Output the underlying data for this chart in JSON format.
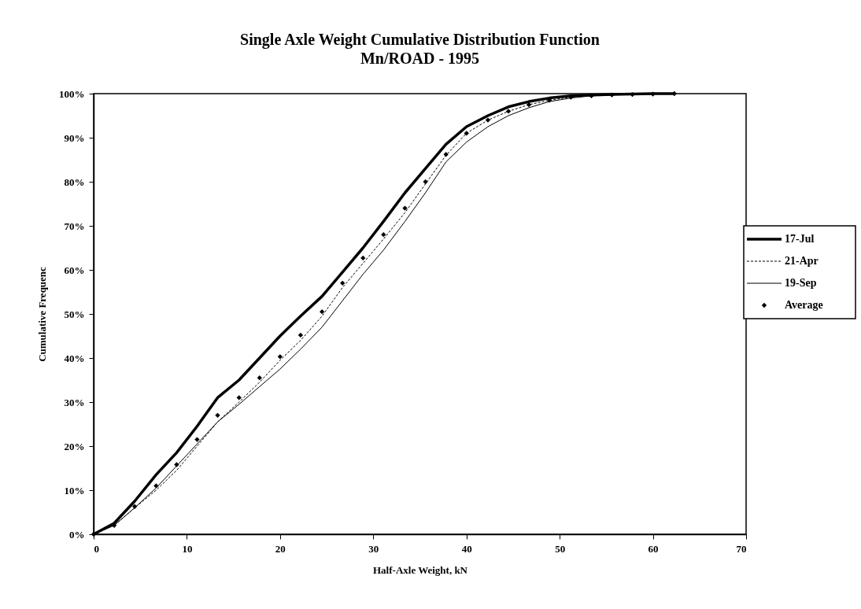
{
  "chart_data": {
    "type": "line",
    "title": "Single Axle Weight Cumulative Distribution Function",
    "subtitle": "Mn/ROAD - 1995",
    "xlabel": "Half-Axle Weight, kN",
    "ylabel": "Cumulative Frequenc",
    "x": [
      0,
      2.2,
      4.4,
      6.7,
      8.9,
      11.1,
      13.3,
      15.6,
      17.8,
      20.0,
      22.2,
      24.5,
      26.7,
      28.9,
      31.1,
      33.4,
      35.6,
      37.8,
      40.0,
      42.3,
      44.5,
      46.7,
      48.9,
      51.2,
      53.4,
      55.6,
      57.8,
      60.0,
      62.3
    ],
    "series": [
      {
        "name": "17-Jul",
        "color": "#000000",
        "line_style": "solid",
        "marker": "none",
        "values": [
          0,
          2.5,
          7.5,
          13.5,
          18.5,
          24.5,
          31,
          35,
          40,
          45,
          49.5,
          54,
          59.5,
          65,
          71,
          77.5,
          83,
          88.5,
          92.5,
          95,
          97,
          98.2,
          99,
          99.5,
          99.7,
          99.8,
          99.9,
          100,
          100
        ]
      },
      {
        "name": "21-Apr",
        "color": "#000000",
        "line_style": "dashed",
        "marker": "none",
        "values": [
          0,
          2,
          6,
          10,
          14.5,
          20,
          25.5,
          30,
          34.5,
          39.5,
          44,
          49.5,
          56,
          61.5,
          67,
          73,
          79.5,
          86,
          91,
          94,
          96,
          97.5,
          98.5,
          99.2,
          99.5,
          99.7,
          99.8,
          99.9,
          100
        ]
      },
      {
        "name": "19-Sep",
        "color": "#000000",
        "line_style": "solid",
        "marker": "none",
        "values": [
          0,
          2,
          6,
          10.5,
          15.5,
          20.5,
          25.5,
          29.5,
          33.5,
          37.5,
          42,
          47,
          53,
          59,
          64.5,
          71,
          77.5,
          84.5,
          89,
          92.5,
          95,
          96.8,
          98.2,
          99,
          99.5,
          99.7,
          99.8,
          99.9,
          100
        ]
      },
      {
        "name": "Average",
        "color": "#000000",
        "type": "scatter",
        "marker": "diamond",
        "values": [
          0,
          2,
          6.3,
          11,
          15.8,
          21.5,
          27,
          31,
          35.5,
          40.3,
          45.2,
          50.5,
          57,
          62.7,
          68,
          74,
          80,
          86.2,
          91,
          94,
          96,
          97.5,
          98.5,
          99.2,
          99.5,
          99.7,
          99.8,
          99.9,
          100
        ]
      }
    ],
    "xlim": [
      0,
      70
    ],
    "xticks": [
      0,
      10,
      20,
      30,
      40,
      50,
      60,
      70
    ],
    "ylim": [
      0,
      100
    ],
    "yticks": [
      {
        "value": 0,
        "label": "0%"
      },
      {
        "value": 10,
        "label": "10%"
      },
      {
        "value": 20,
        "label": "20%"
      },
      {
        "value": 30,
        "label": "30%"
      },
      {
        "value": 40,
        "label": "40%"
      },
      {
        "value": 50,
        "label": "50%"
      },
      {
        "value": 60,
        "label": "60%"
      },
      {
        "value": 70,
        "label": "70%"
      },
      {
        "value": 80,
        "label": "80%"
      },
      {
        "value": 90,
        "label": "90%"
      },
      {
        "value": 100,
        "label": "100%"
      }
    ],
    "grid": false,
    "legend": "right"
  }
}
